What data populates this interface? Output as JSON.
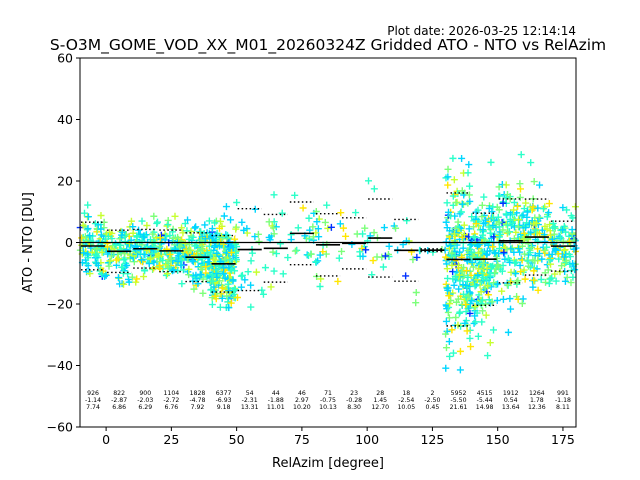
{
  "chart_data": {
    "type": "scatter",
    "plot_date": "Plot date: 2026-03-25 12:14:14",
    "title": "S-O3M_GOME_VOD_XX_M01_20260324Z Gridded ATO - NTO vs RelAzim",
    "xlabel": "RelAzim [degree]",
    "ylabel": "ATO - NTO [DU]",
    "xlim": [
      -10,
      180
    ],
    "ylim": [
      -60,
      60
    ],
    "xticks": [
      0,
      25,
      50,
      75,
      100,
      125,
      150,
      175
    ],
    "yticks": [
      -60,
      -40,
      -20,
      0,
      20,
      40,
      60
    ],
    "reference_line": 0,
    "bins": [
      {
        "x0": -10,
        "x1": 0,
        "count": "926",
        "mean": -1.14,
        "std": 7.74
      },
      {
        "x0": 0,
        "x1": 10,
        "count": "822",
        "mean": -2.87,
        "std": 6.86
      },
      {
        "x0": 10,
        "x1": 20,
        "count": "900",
        "mean": -2.03,
        "std": 6.29
      },
      {
        "x0": 20,
        "x1": 30,
        "count": "1104",
        "mean": -2.72,
        "std": 6.76
      },
      {
        "x0": 30,
        "x1": 40,
        "count": "1828",
        "mean": -4.78,
        "std": 7.92
      },
      {
        "x0": 40,
        "x1": 50,
        "count": "6377",
        "mean": -6.93,
        "std": 9.18
      },
      {
        "x0": 50,
        "x1": 60,
        "count": "54",
        "mean": -2.31,
        "std": 13.31
      },
      {
        "x0": 60,
        "x1": 70,
        "count": "44",
        "mean": -1.88,
        "std": 11.01
      },
      {
        "x0": 70,
        "x1": 80,
        "count": "46",
        "mean": 2.97,
        "std": 10.2
      },
      {
        "x0": 80,
        "x1": 90,
        "count": "71",
        "mean": -0.75,
        "std": 10.13
      },
      {
        "x0": 90,
        "x1": 100,
        "count": "23",
        "mean": -0.28,
        "std": 8.3
      },
      {
        "x0": 100,
        "x1": 110,
        "count": "28",
        "mean": 1.45,
        "std": 12.7
      },
      {
        "x0": 110,
        "x1": 120,
        "count": "18",
        "mean": -2.54,
        "std": 10.05
      },
      {
        "x0": 120,
        "x1": 130,
        "count": "2",
        "mean": -2.5,
        "std": 0.45
      },
      {
        "x0": 130,
        "x1": 140,
        "count": "5952",
        "mean": -5.5,
        "std": 21.61
      },
      {
        "x0": 140,
        "x1": 150,
        "count": "4515",
        "mean": -5.44,
        "std": 14.98
      },
      {
        "x0": 150,
        "x1": 160,
        "count": "1912",
        "mean": 0.54,
        "std": 13.64
      },
      {
        "x0": 160,
        "x1": 170,
        "count": "1264",
        "mean": 1.78,
        "std": 12.36
      },
      {
        "x0": 170,
        "x1": 180,
        "count": "991",
        "mean": -1.18,
        "std": 8.11
      }
    ],
    "colors": {
      "mean_line": "#000000",
      "std_dots": "#000000",
      "zero_line": "#000000",
      "scatter_palette": [
        "#00d6ff",
        "#2bffc9",
        "#7cff7a",
        "#c6ff30",
        "#ffe600",
        "#0030ff"
      ]
    }
  }
}
